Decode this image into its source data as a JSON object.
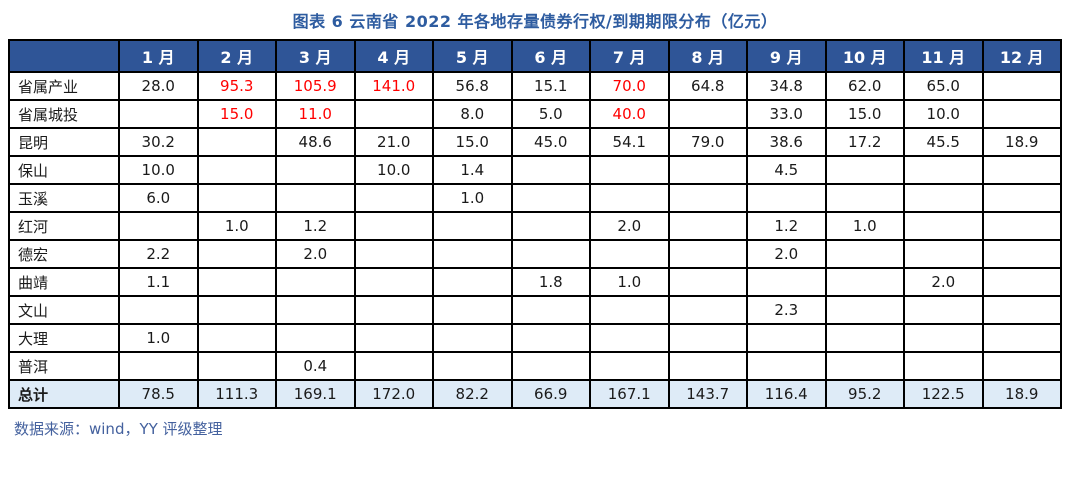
{
  "title": "图表 6 云南省 2022 年各地存量债券行权/到期期限分布（亿元）",
  "source_note": "数据来源：wind，YY 评级整理",
  "colors": {
    "title_text": "#2E5CA0",
    "header_bg": "#2F5597",
    "header_text": "#FFFFFF",
    "total_row_bg": "#DEEBF7",
    "highlight_red": "#FF0000",
    "cell_text": "#1A1A1A",
    "source_text": "#44619E",
    "border": "#000000"
  },
  "chart_data": {
    "type": "table",
    "columns": [
      "",
      "1 月",
      "2 月",
      "3 月",
      "4 月",
      "5 月",
      "6 月",
      "7 月",
      "8 月",
      "9 月",
      "10 月",
      "11 月",
      "12 月"
    ],
    "rows": [
      {
        "label": "省属产业",
        "values": [
          "28.0",
          "95.3",
          "105.9",
          "141.0",
          "56.8",
          "15.1",
          "70.0",
          "64.8",
          "34.8",
          "62.0",
          "65.0",
          ""
        ],
        "red_indexes": [
          1,
          2,
          3,
          6
        ],
        "is_total": false
      },
      {
        "label": "省属城投",
        "values": [
          "",
          "15.0",
          "11.0",
          "",
          "8.0",
          "5.0",
          "40.0",
          "",
          "33.0",
          "15.0",
          "10.0",
          ""
        ],
        "red_indexes": [
          1,
          2,
          6
        ],
        "is_total": false
      },
      {
        "label": "昆明",
        "values": [
          "30.2",
          "",
          "48.6",
          "21.0",
          "15.0",
          "45.0",
          "54.1",
          "79.0",
          "38.6",
          "17.2",
          "45.5",
          "18.9"
        ],
        "red_indexes": [],
        "is_total": false
      },
      {
        "label": "保山",
        "values": [
          "10.0",
          "",
          "",
          "10.0",
          "1.4",
          "",
          "",
          "",
          "4.5",
          "",
          "",
          ""
        ],
        "red_indexes": [],
        "is_total": false
      },
      {
        "label": "玉溪",
        "values": [
          "6.0",
          "",
          "",
          "",
          "1.0",
          "",
          "",
          "",
          "",
          "",
          "",
          ""
        ],
        "red_indexes": [],
        "is_total": false
      },
      {
        "label": "红河",
        "values": [
          "",
          "1.0",
          "1.2",
          "",
          "",
          "",
          "2.0",
          "",
          "1.2",
          "1.0",
          "",
          ""
        ],
        "red_indexes": [],
        "is_total": false
      },
      {
        "label": "德宏",
        "values": [
          "2.2",
          "",
          "2.0",
          "",
          "",
          "",
          "",
          "",
          "2.0",
          "",
          "",
          ""
        ],
        "red_indexes": [],
        "is_total": false
      },
      {
        "label": "曲靖",
        "values": [
          "1.1",
          "",
          "",
          "",
          "",
          "1.8",
          "1.0",
          "",
          "",
          "",
          "2.0",
          ""
        ],
        "red_indexes": [],
        "is_total": false
      },
      {
        "label": "文山",
        "values": [
          "",
          "",
          "",
          "",
          "",
          "",
          "",
          "",
          "2.3",
          "",
          "",
          ""
        ],
        "red_indexes": [],
        "is_total": false
      },
      {
        "label": "大理",
        "values": [
          "1.0",
          "",
          "",
          "",
          "",
          "",
          "",
          "",
          "",
          "",
          "",
          ""
        ],
        "red_indexes": [],
        "is_total": false
      },
      {
        "label": "普洱",
        "values": [
          "",
          "",
          "0.4",
          "",
          "",
          "",
          "",
          "",
          "",
          "",
          "",
          ""
        ],
        "red_indexes": [],
        "is_total": false
      },
      {
        "label": "总计",
        "values": [
          "78.5",
          "111.3",
          "169.1",
          "172.0",
          "82.2",
          "66.9",
          "167.1",
          "143.7",
          "116.4",
          "95.2",
          "122.5",
          "18.9"
        ],
        "red_indexes": [],
        "is_total": true
      }
    ]
  }
}
